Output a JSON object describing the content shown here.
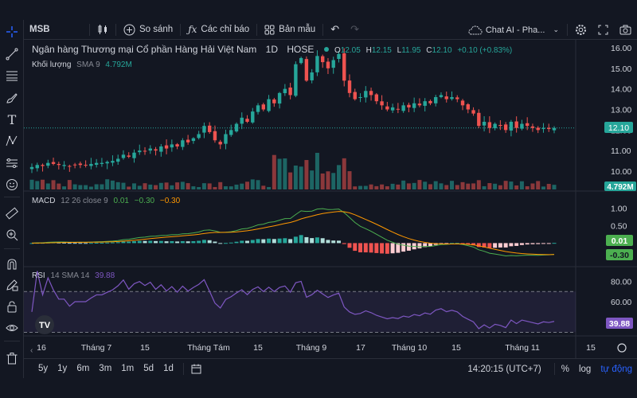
{
  "toolbar": {
    "symbol": "MSB",
    "compare_label": "So sánh",
    "indicators_label": "Các chỉ báo",
    "templates_label": "Bản mẫu",
    "chat_label": "Chat AI - Pha..."
  },
  "legend": {
    "company": "Ngân hàng Thương mại Cổ phần Hàng Hải Việt Nam",
    "interval": "1D",
    "exchange": "HOSE",
    "o_label": "O",
    "o_value": "12.05",
    "h_label": "H",
    "h_value": "12.15",
    "l_label": "L",
    "l_value": "11.95",
    "c_label": "C",
    "c_value": "12.10",
    "change": "+0.10 (+0.83%)",
    "volume_label": "Khối lượng",
    "volume_sma": "SMA 9",
    "volume_value": "4.792M"
  },
  "macd": {
    "label": "MACD",
    "params": "12 26 close 9",
    "v1": "0.01",
    "v2": "−0.30",
    "v3": "−0.30",
    "badge_signal": "0.01",
    "badge_macd": "-0.30"
  },
  "rsi": {
    "label": "RSI",
    "params": "14 SMA 14",
    "value": "39.88",
    "badge": "39.88"
  },
  "price_axis": [
    "16.00",
    "15.00",
    "14.00",
    "13.00",
    "12.00",
    "11.00",
    "10.00"
  ],
  "price_badge": "12.10",
  "volume_badge": "4.792M",
  "macd_axis": [
    "1.00",
    "0.50"
  ],
  "rsi_axis": [
    "80.00",
    "60.00",
    "40.00"
  ],
  "time_axis": [
    "16",
    "Tháng 7",
    "15",
    "Tháng Tám",
    "15",
    "Tháng 9",
    "17",
    "Tháng 10",
    "15",
    "Tháng 11",
    "15"
  ],
  "timeframes": [
    "5y",
    "1y",
    "6m",
    "3m",
    "1m",
    "5d",
    "1d"
  ],
  "bottom": {
    "time": "14:20:15 (UTC+7)",
    "percent": "%",
    "log": "log",
    "auto": "tự động"
  },
  "colors": {
    "up": "#26a69a",
    "down": "#ef5350",
    "background": "#131722",
    "macd_line": "#4caf50",
    "signal_line": "#ff9800",
    "rsi_line": "#7e57c2",
    "accent": "#2962ff"
  },
  "chart_data": {
    "type": "candlestick",
    "symbol": "MSB",
    "close_series": [
      10.2,
      10.3,
      10.25,
      10.4,
      10.35,
      10.3,
      10.3,
      10.25,
      10.3,
      10.3,
      10.3,
      10.35,
      10.4,
      10.4,
      10.45,
      10.5,
      10.6,
      10.8,
      10.7,
      10.9,
      11.0,
      10.95,
      11.1,
      11.0,
      11.2,
      11.1,
      11.3,
      11.2,
      11.5,
      11.4,
      11.6,
      11.8,
      12.2,
      11.9,
      11.5,
      11.3,
      11.8,
      12.0,
      12.3,
      12.6,
      12.4,
      12.9,
      13.2,
      13.0,
      13.5,
      13.3,
      13.8,
      14.0,
      13.7,
      15.2,
      15.5,
      14.4,
      14.8,
      15.6,
      15.3,
      15.0,
      15.4,
      15.7,
      14.4,
      13.8,
      13.5,
      13.6,
      13.9,
      13.7,
      13.4,
      13.2,
      13.0,
      13.1,
      13.0,
      13.2,
      13.1,
      13.3,
      13.2,
      13.4,
      13.3,
      13.6,
      13.7,
      13.5,
      13.6,
      13.5,
      13.2,
      13.0,
      12.8,
      12.2,
      12.4,
      12.1,
      12.3,
      12.2,
      12.0,
      12.4,
      12.1,
      12.3,
      12.2,
      12.1,
      12.0,
      12.1,
      12.05,
      12.1
    ],
    "ohlc_last": {
      "open": 12.05,
      "high": 12.15,
      "low": 11.95,
      "close": 12.1
    },
    "price_range": [
      9.6,
      16.2
    ],
    "macd_range": [
      -0.65,
      1.35
    ],
    "rsi_range": [
      28,
      92
    ],
    "rsi_bands": [
      70,
      30
    ]
  }
}
